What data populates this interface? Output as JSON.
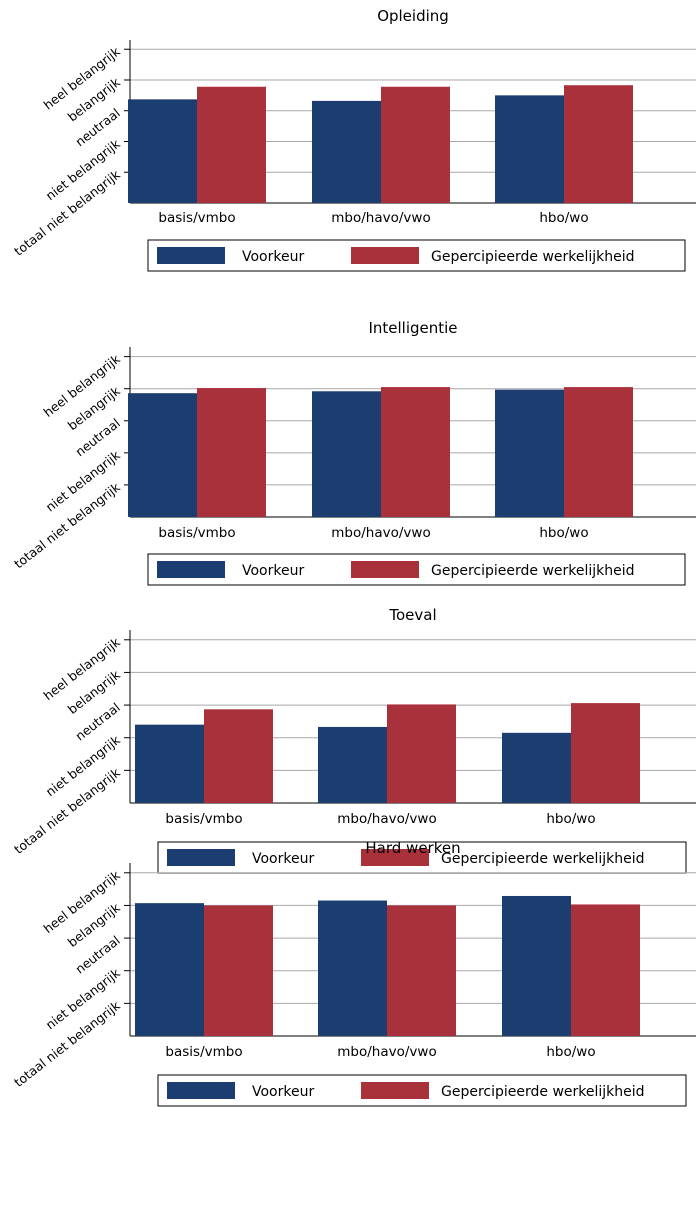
{
  "colors": {
    "voorkeur": "#1b3d6f",
    "werkelijkheid": "#a9313b",
    "grid": "#a8a8a8"
  },
  "chart_data": [
    {
      "type": "bar",
      "title": "Opleiding",
      "categories": [
        "basis/vmbo",
        "mbo/havo/vwo",
        "hbo/wo"
      ],
      "y_tick_labels": [
        "totaal niet belangrijk",
        "niet belangrijk",
        "neutraal",
        "belangrijk",
        "heel belangrijk"
      ],
      "ylim": [
        0,
        5.3
      ],
      "series": [
        {
          "name": "Voorkeur",
          "values": [
            3.37,
            3.32,
            3.5
          ]
        },
        {
          "name": "Gepercipieerde werkelijkheid",
          "values": [
            3.78,
            3.78,
            3.83
          ]
        }
      ],
      "legend": "bottom",
      "grid": true
    },
    {
      "type": "bar",
      "title": "Intelligentie",
      "categories": [
        "basis/vmbo",
        "mbo/havo/vwo",
        "hbo/wo"
      ],
      "y_tick_labels": [
        "totaal niet belangrijk",
        "niet belangrijk",
        "neutraal",
        "belangrijk",
        "heel belangrijk"
      ],
      "ylim": [
        0,
        5.3
      ],
      "series": [
        {
          "name": "Voorkeur",
          "values": [
            3.86,
            3.92,
            3.97
          ]
        },
        {
          "name": "Gepercipieerde werkelijkheid",
          "values": [
            4.02,
            4.05,
            4.05
          ]
        }
      ],
      "legend": "bottom",
      "grid": true
    },
    {
      "type": "bar",
      "title": "Toeval",
      "categories": [
        "basis/vmbo",
        "mbo/havo/vwo",
        "hbo/wo"
      ],
      "y_tick_labels": [
        "totaal niet belangrijk",
        "niet belangrijk",
        "neutraal",
        "belangrijk",
        "heel belangrijk"
      ],
      "ylim": [
        0,
        5.3
      ],
      "series": [
        {
          "name": "Voorkeur",
          "values": [
            2.4,
            2.33,
            2.15
          ]
        },
        {
          "name": "Gepercipieerde werkelijkheid",
          "values": [
            2.87,
            3.02,
            3.06
          ]
        }
      ],
      "legend": "bottom",
      "grid": true
    },
    {
      "type": "bar",
      "title": "Hard werken",
      "categories": [
        "basis/vmbo",
        "mbo/havo/vwo",
        "hbo/wo"
      ],
      "y_tick_labels": [
        "totaal niet belangrijk",
        "niet belangrijk",
        "neutraal",
        "belangrijk",
        "heel belangrijk"
      ],
      "ylim": [
        0,
        5.3
      ],
      "series": [
        {
          "name": "Voorkeur",
          "values": [
            4.07,
            4.15,
            4.29
          ]
        },
        {
          "name": "Gepercipieerde werkelijkheid",
          "values": [
            4.0,
            4.0,
            4.03
          ]
        }
      ],
      "legend": "bottom",
      "grid": true
    }
  ]
}
